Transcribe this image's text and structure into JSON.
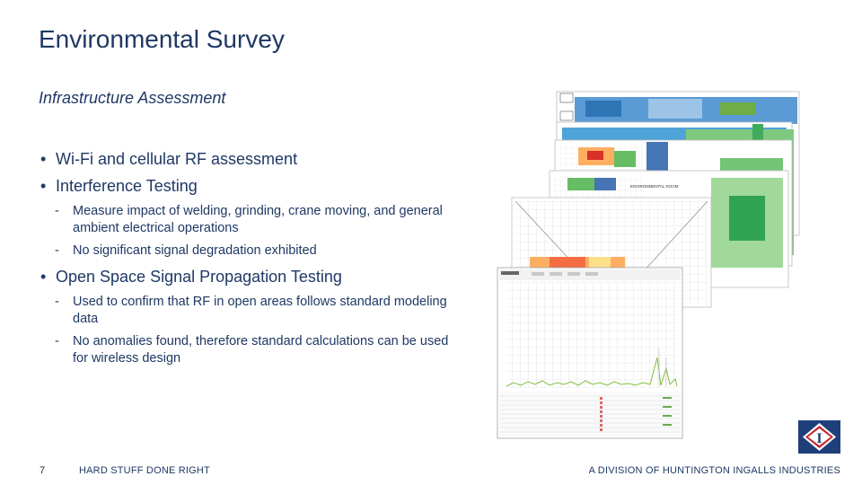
{
  "slide": {
    "title": "Environmental Survey",
    "subtitle": "Infrastructure Assessment",
    "bullets": [
      {
        "text": "Wi-Fi and cellular RF assessment",
        "subs": []
      },
      {
        "text": "Interference Testing",
        "subs": [
          "Measure impact of welding, grinding, crane moving, and general ambient electrical operations",
          "No significant signal degradation exhibited"
        ]
      },
      {
        "text": "Open Space Signal Propagation Testing",
        "subs": [
          "Used to confirm that RF in open areas follows standard modeling data",
          "No anomalies found, therefore standard calculations can be used for wireless design"
        ]
      }
    ]
  },
  "footer": {
    "page_number": "7",
    "left_text": "HARD STUFF DONE RIGHT",
    "right_text": "A DIVISION OF HUNTINGTON INGALLS INDUSTRIES"
  },
  "images": {
    "collage_labels": [
      "ENVIRONMENTAL ROOM",
      "ENVIRONMENTAL ROOM"
    ],
    "logo_letter": "I"
  },
  "colors": {
    "text": "#1f3864",
    "logo_blue": "#1f3f7a",
    "logo_red": "#c0282e"
  }
}
